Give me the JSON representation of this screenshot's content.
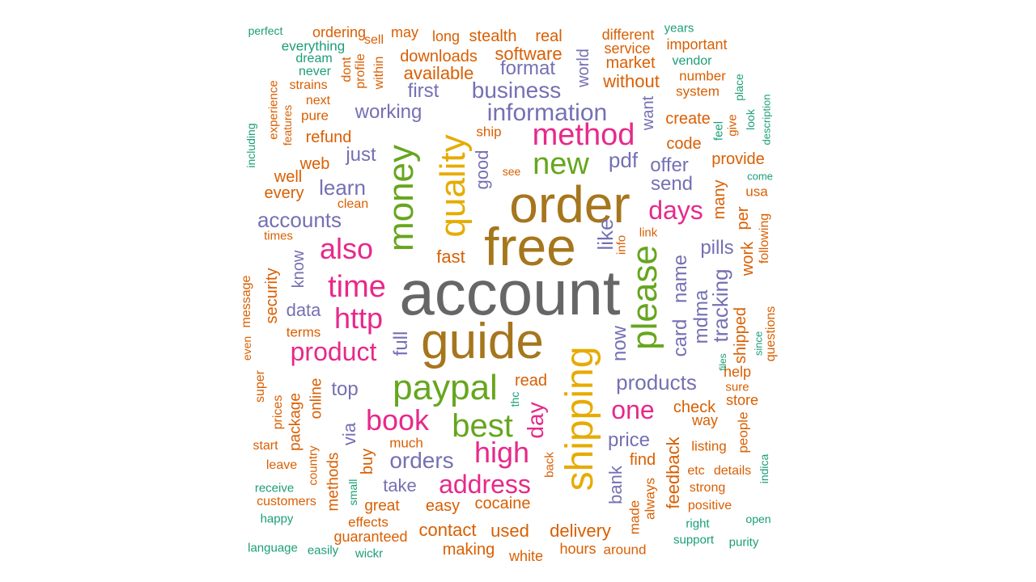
{
  "colors": {
    "gray": "#666666",
    "brown": "#a6761d",
    "orange": "#d95f02",
    "teal": "#1b9e77",
    "purple": "#7570b3",
    "pink": "#e7298a",
    "green": "#66a61e",
    "gold": "#e6ab02"
  },
  "words": [
    {
      "text": "account",
      "color": "gray"
    },
    {
      "text": "free",
      "color": "brown"
    },
    {
      "text": "order",
      "color": "brown"
    },
    {
      "text": "guide",
      "color": "brown"
    },
    {
      "text": "shipping",
      "color": "gold"
    },
    {
      "text": "quality",
      "color": "gold"
    },
    {
      "text": "money",
      "color": "green"
    },
    {
      "text": "paypal",
      "color": "green"
    },
    {
      "text": "please",
      "color": "green"
    },
    {
      "text": "best",
      "color": "green"
    },
    {
      "text": "new",
      "color": "green"
    },
    {
      "text": "method",
      "color": "pink"
    },
    {
      "text": "time",
      "color": "pink"
    },
    {
      "text": "also",
      "color": "pink"
    },
    {
      "text": "http",
      "color": "pink"
    },
    {
      "text": "product",
      "color": "pink"
    },
    {
      "text": "book",
      "color": "pink"
    },
    {
      "text": "high",
      "color": "pink"
    },
    {
      "text": "days",
      "color": "pink"
    },
    {
      "text": "one",
      "color": "pink"
    },
    {
      "text": "address",
      "color": "pink"
    },
    {
      "text": "day",
      "color": "pink"
    },
    {
      "text": "information",
      "color": "purple"
    },
    {
      "text": "business",
      "color": "purple"
    },
    {
      "text": "orders",
      "color": "purple"
    },
    {
      "text": "products",
      "color": "purple"
    },
    {
      "text": "tracking",
      "color": "purple"
    },
    {
      "text": "accounts",
      "color": "purple"
    },
    {
      "text": "card",
      "color": "purple"
    },
    {
      "text": "name",
      "color": "purple"
    },
    {
      "text": "mdma",
      "color": "purple"
    },
    {
      "text": "format",
      "color": "purple"
    },
    {
      "text": "first",
      "color": "purple"
    },
    {
      "text": "working",
      "color": "purple"
    },
    {
      "text": "learn",
      "color": "purple"
    },
    {
      "text": "just",
      "color": "purple"
    },
    {
      "text": "pdf",
      "color": "purple"
    },
    {
      "text": "send",
      "color": "purple"
    },
    {
      "text": "offer",
      "color": "purple"
    },
    {
      "text": "pills",
      "color": "purple"
    },
    {
      "text": "like",
      "color": "purple"
    },
    {
      "text": "now",
      "color": "purple"
    },
    {
      "text": "price",
      "color": "purple"
    },
    {
      "text": "full",
      "color": "purple"
    },
    {
      "text": "top",
      "color": "purple"
    },
    {
      "text": "data",
      "color": "purple"
    },
    {
      "text": "know",
      "color": "purple"
    },
    {
      "text": "take",
      "color": "purple"
    },
    {
      "text": "via",
      "color": "purple"
    },
    {
      "text": "want",
      "color": "purple"
    },
    {
      "text": "good",
      "color": "purple"
    },
    {
      "text": "bank",
      "color": "purple"
    },
    {
      "text": "may",
      "color": "orange"
    },
    {
      "text": "sell",
      "color": "orange"
    },
    {
      "text": "long",
      "color": "orange"
    },
    {
      "text": "stealth",
      "color": "orange"
    },
    {
      "text": "real",
      "color": "orange"
    },
    {
      "text": "different",
      "color": "orange"
    },
    {
      "text": "downloads",
      "color": "orange"
    },
    {
      "text": "software",
      "color": "orange"
    },
    {
      "text": "market",
      "color": "orange"
    },
    {
      "text": "service",
      "color": "orange"
    },
    {
      "text": "important",
      "color": "orange"
    },
    {
      "text": "available",
      "color": "orange"
    },
    {
      "text": "without",
      "color": "orange"
    },
    {
      "text": "number",
      "color": "orange"
    },
    {
      "text": "system",
      "color": "orange"
    },
    {
      "text": "world",
      "color": "purple"
    },
    {
      "text": "ordering",
      "color": "orange"
    },
    {
      "text": "everything",
      "color": "teal"
    },
    {
      "text": "dream",
      "color": "teal"
    },
    {
      "text": "never",
      "color": "teal"
    },
    {
      "text": "strains",
      "color": "orange"
    },
    {
      "text": "next",
      "color": "orange"
    },
    {
      "text": "pure",
      "color": "orange"
    },
    {
      "text": "dont",
      "color": "orange"
    },
    {
      "text": "profile",
      "color": "orange"
    },
    {
      "text": "within",
      "color": "orange"
    },
    {
      "text": "experience",
      "color": "orange"
    },
    {
      "text": "features",
      "color": "orange"
    },
    {
      "text": "including",
      "color": "teal"
    },
    {
      "text": "refund",
      "color": "orange"
    },
    {
      "text": "ship",
      "color": "orange"
    },
    {
      "text": "web",
      "color": "orange"
    },
    {
      "text": "well",
      "color": "orange"
    },
    {
      "text": "every",
      "color": "orange"
    },
    {
      "text": "clean",
      "color": "orange"
    },
    {
      "text": "see",
      "color": "orange"
    },
    {
      "text": "fast",
      "color": "orange"
    },
    {
      "text": "times",
      "color": "orange"
    },
    {
      "text": "create",
      "color": "orange"
    },
    {
      "text": "code",
      "color": "orange"
    },
    {
      "text": "provide",
      "color": "orange"
    },
    {
      "text": "usa",
      "color": "orange"
    },
    {
      "text": "many",
      "color": "orange"
    },
    {
      "text": "per",
      "color": "orange"
    },
    {
      "text": "work",
      "color": "orange"
    },
    {
      "text": "following",
      "color": "orange"
    },
    {
      "text": "info",
      "color": "orange"
    },
    {
      "text": "link",
      "color": "orange"
    },
    {
      "text": "feel",
      "color": "teal"
    },
    {
      "text": "give",
      "color": "orange"
    },
    {
      "text": "look",
      "color": "teal"
    },
    {
      "text": "description",
      "color": "teal"
    },
    {
      "text": "place",
      "color": "teal"
    },
    {
      "text": "come",
      "color": "teal"
    },
    {
      "text": "years",
      "color": "teal"
    },
    {
      "text": "vendor",
      "color": "teal"
    },
    {
      "text": "perfect",
      "color": "teal"
    },
    {
      "text": "message",
      "color": "orange"
    },
    {
      "text": "security",
      "color": "orange"
    },
    {
      "text": "terms",
      "color": "orange"
    },
    {
      "text": "even",
      "color": "orange"
    },
    {
      "text": "super",
      "color": "orange"
    },
    {
      "text": "prices",
      "color": "orange"
    },
    {
      "text": "package",
      "color": "orange"
    },
    {
      "text": "online",
      "color": "orange"
    },
    {
      "text": "country",
      "color": "orange"
    },
    {
      "text": "methods",
      "color": "orange"
    },
    {
      "text": "start",
      "color": "orange"
    },
    {
      "text": "leave",
      "color": "orange"
    },
    {
      "text": "receive",
      "color": "teal"
    },
    {
      "text": "customers",
      "color": "orange"
    },
    {
      "text": "happy",
      "color": "teal"
    },
    {
      "text": "language",
      "color": "teal"
    },
    {
      "text": "easily",
      "color": "teal"
    },
    {
      "text": "guaranteed",
      "color": "orange"
    },
    {
      "text": "wickr",
      "color": "teal"
    },
    {
      "text": "effects",
      "color": "orange"
    },
    {
      "text": "great",
      "color": "orange"
    },
    {
      "text": "small",
      "color": "teal"
    },
    {
      "text": "buy",
      "color": "orange"
    },
    {
      "text": "much",
      "color": "orange"
    },
    {
      "text": "read",
      "color": "orange"
    },
    {
      "text": "thc",
      "color": "teal"
    },
    {
      "text": "easy",
      "color": "orange"
    },
    {
      "text": "cocaine",
      "color": "orange"
    },
    {
      "text": "contact",
      "color": "orange"
    },
    {
      "text": "used",
      "color": "orange"
    },
    {
      "text": "making",
      "color": "orange"
    },
    {
      "text": "white",
      "color": "orange"
    },
    {
      "text": "back",
      "color": "orange"
    },
    {
      "text": "delivery",
      "color": "orange"
    },
    {
      "text": "hours",
      "color": "orange"
    },
    {
      "text": "around",
      "color": "orange"
    },
    {
      "text": "made",
      "color": "orange"
    },
    {
      "text": "always",
      "color": "orange"
    },
    {
      "text": "find",
      "color": "orange"
    },
    {
      "text": "feedback",
      "color": "orange"
    },
    {
      "text": "check",
      "color": "orange"
    },
    {
      "text": "way",
      "color": "orange"
    },
    {
      "text": "listing",
      "color": "orange"
    },
    {
      "text": "etc",
      "color": "orange"
    },
    {
      "text": "details",
      "color": "orange"
    },
    {
      "text": "strong",
      "color": "orange"
    },
    {
      "text": "positive",
      "color": "orange"
    },
    {
      "text": "right",
      "color": "teal"
    },
    {
      "text": "support",
      "color": "teal"
    },
    {
      "text": "purity",
      "color": "teal"
    },
    {
      "text": "open",
      "color": "teal"
    },
    {
      "text": "indica",
      "color": "teal"
    },
    {
      "text": "people",
      "color": "orange"
    },
    {
      "text": "store",
      "color": "orange"
    },
    {
      "text": "sure",
      "color": "orange"
    },
    {
      "text": "help",
      "color": "orange"
    },
    {
      "text": "shipped",
      "color": "orange"
    },
    {
      "text": "questions",
      "color": "orange"
    },
    {
      "text": "since",
      "color": "teal"
    },
    {
      "text": "files",
      "color": "teal"
    }
  ]
}
